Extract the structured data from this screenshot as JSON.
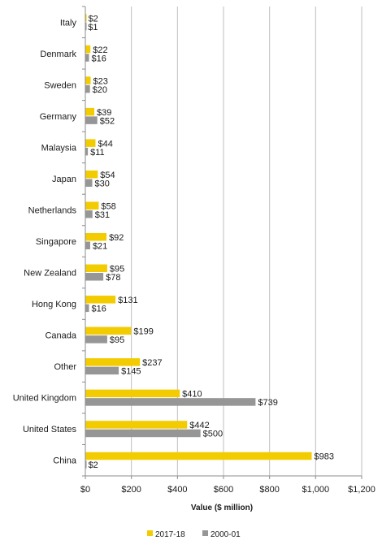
{
  "chart_data": {
    "type": "bar",
    "orientation": "horizontal",
    "title": "",
    "categories": [
      "Italy",
      "Denmark",
      "Sweden",
      "Germany",
      "Malaysia",
      "Japan",
      "Netherlands",
      "Singapore",
      "New Zealand",
      "Hong Kong",
      "Canada",
      "Other",
      "United Kingdom",
      "United States",
      "China"
    ],
    "series": [
      {
        "name": "2017-18",
        "color": "#F2CC00",
        "values": [
          2,
          22,
          23,
          39,
          44,
          54,
          58,
          92,
          95,
          131,
          199,
          237,
          410,
          442,
          983
        ],
        "labels": [
          "$2",
          "$22",
          "$23",
          "$39",
          "$44",
          "$54",
          "$58",
          "$92",
          "$95",
          "$131",
          "$199",
          "$237",
          "$410",
          "$442",
          "$983"
        ]
      },
      {
        "name": "2000-01",
        "color": "#969696",
        "values": [
          1,
          16,
          20,
          52,
          11,
          30,
          31,
          21,
          78,
          16,
          95,
          145,
          739,
          500,
          2
        ],
        "labels": [
          "$1",
          "$16",
          "$20",
          "$52",
          "$11",
          "$30",
          "$31",
          "$21",
          "$78",
          "$16",
          "$95",
          "$145",
          "$739",
          "$500",
          "$2"
        ]
      }
    ],
    "xlabel": "Value ($ million)",
    "ylabel": "",
    "xlim": [
      0,
      1200
    ],
    "xticks": [
      0,
      200,
      400,
      600,
      800,
      1000,
      1200
    ],
    "xtick_labels": [
      "$0",
      "$200",
      "$400",
      "$600",
      "$800",
      "$1,000",
      "$1,200"
    ],
    "grid": true,
    "legend_position": "bottom"
  }
}
